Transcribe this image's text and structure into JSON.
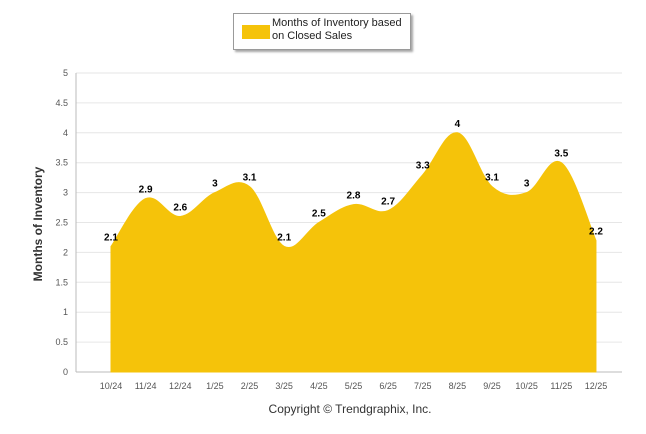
{
  "chart_data": {
    "type": "area",
    "categories": [
      "10/24",
      "11/24",
      "12/24",
      "1/25",
      "2/25",
      "3/25",
      "4/25",
      "5/25",
      "6/25",
      "7/25",
      "8/25",
      "9/25",
      "10/25",
      "11/25",
      "12/25"
    ],
    "series": [
      {
        "name": "Months of Inventory based on Closed Sales",
        "values": [
          2.1,
          2.9,
          2.6,
          3,
          3.1,
          2.1,
          2.5,
          2.8,
          2.7,
          3.3,
          4,
          3.1,
          3,
          3.5,
          2.2
        ],
        "labels": [
          "2.1",
          "2.9",
          "2.6",
          "3",
          "3.1",
          "2.1",
          "2.5",
          "2.8",
          "2.7",
          "3.3",
          "4",
          "3.1",
          "3",
          "3.5",
          "2.2"
        ]
      }
    ],
    "ylabel": "Months of Inventory",
    "xlabel": "",
    "ylim": [
      0,
      5
    ],
    "yticks": [
      "0",
      "0.5",
      "1",
      "1.5",
      "2",
      "2.5",
      "3",
      "3.5",
      "4",
      "4.5",
      "5"
    ],
    "grid": true,
    "legend_position": "top-center"
  },
  "colors": {
    "area": "#F5C30A",
    "grid": "#e6e6e6",
    "axis": "#bbbbbb"
  },
  "legend": {
    "label": "Months of Inventory based on Closed Sales"
  },
  "footer": {
    "copyright": "Copyright © Trendgraphix, Inc."
  }
}
